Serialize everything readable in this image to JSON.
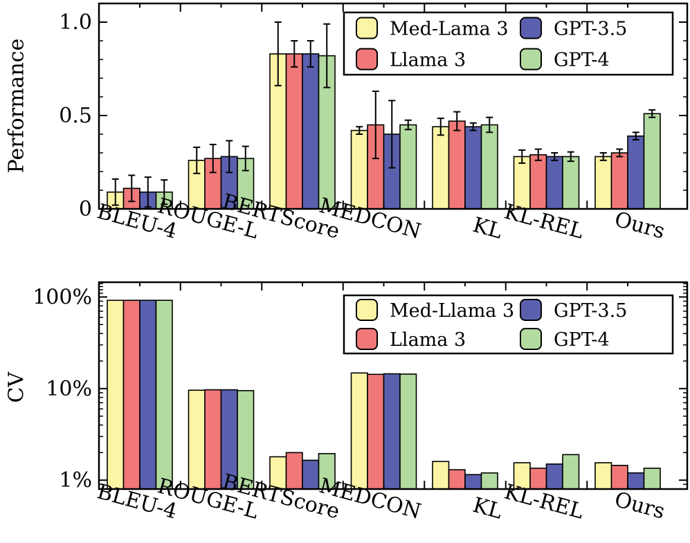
{
  "chart_data": [
    {
      "type": "bar",
      "ylabel": "Performance",
      "yscale": "linear",
      "ylim": [
        0,
        1.1
      ],
      "yticks": [
        0,
        0.5,
        1.0
      ],
      "ytick_labels": [
        "0",
        "0.5",
        "1.0"
      ],
      "legend_position": "top-right",
      "categories": [
        "BLEU-4",
        "ROUGE-L",
        "BERTScore",
        "MEDCON",
        "KL",
        "KL-REL",
        "Ours"
      ],
      "series": [
        {
          "name": "Med-Lama 3",
          "color": "#fdf5a6",
          "values": [
            0.09,
            0.26,
            0.83,
            0.42,
            0.44,
            0.28,
            0.28
          ],
          "errors": [
            0.07,
            0.07,
            0.17,
            0.02,
            0.045,
            0.035,
            0.02
          ]
        },
        {
          "name": "Llama 3",
          "color": "#f07878",
          "values": [
            0.11,
            0.27,
            0.83,
            0.45,
            0.47,
            0.29,
            0.3
          ],
          "errors": [
            0.07,
            0.075,
            0.07,
            0.18,
            0.05,
            0.03,
            0.02
          ]
        },
        {
          "name": "GPT-3.5",
          "color": "#5a60ad",
          "values": [
            0.09,
            0.28,
            0.83,
            0.4,
            0.44,
            0.28,
            0.39
          ],
          "errors": [
            0.08,
            0.085,
            0.07,
            0.18,
            0.02,
            0.02,
            0.02
          ]
        },
        {
          "name": "GPT-4",
          "color": "#b3dba0",
          "values": [
            0.09,
            0.27,
            0.82,
            0.45,
            0.45,
            0.28,
            0.51
          ],
          "errors": [
            0.065,
            0.065,
            0.17,
            0.025,
            0.04,
            0.025,
            0.02
          ]
        }
      ]
    },
    {
      "type": "bar",
      "ylabel": "CV",
      "yscale": "log",
      "ylim": [
        0.8,
        145
      ],
      "yticks": [
        1,
        10,
        100
      ],
      "ytick_labels": [
        "1%",
        "10%",
        "100%"
      ],
      "legend_position": "top-right",
      "categories": [
        "BLEU-4",
        "ROUGE-L",
        "BERTScore",
        "MEDCON",
        "KL",
        "KL-REL",
        "Ours"
      ],
      "series": [
        {
          "name": "Med-Llama 3",
          "color": "#fdf5a6",
          "values": [
            92,
            9.6,
            1.8,
            14.8,
            1.6,
            1.55,
            1.55
          ]
        },
        {
          "name": "Llama 3",
          "color": "#f07878",
          "values": [
            92,
            9.7,
            2.0,
            14.3,
            1.3,
            1.35,
            1.45
          ]
        },
        {
          "name": "GPT-3.5",
          "color": "#5a60ad",
          "values": [
            92,
            9.7,
            1.65,
            14.5,
            1.15,
            1.5,
            1.2
          ]
        },
        {
          "name": "GPT-4",
          "color": "#b3dba0",
          "values": [
            92,
            9.5,
            1.95,
            14.4,
            1.2,
            1.9,
            1.35
          ]
        }
      ]
    }
  ]
}
